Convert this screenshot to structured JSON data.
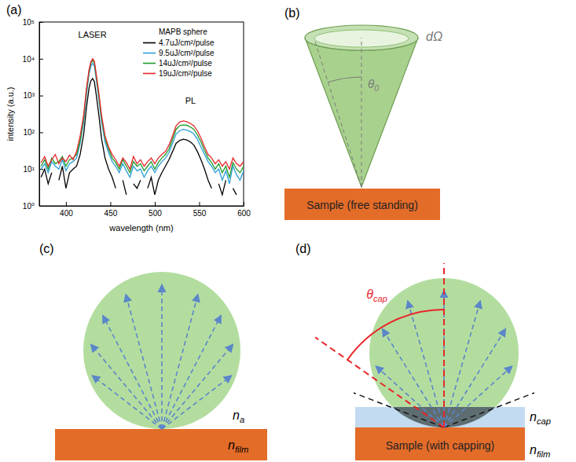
{
  "chart_data": {
    "type": "line",
    "panel_label": "(a)",
    "x_label": "wavelength (nm)",
    "y_label": "intensity (a.u.)",
    "legend_title": "MAPB sphere",
    "legend": "upper right",
    "log": "y",
    "annotations": [
      "LASER",
      "PL"
    ],
    "xlim": [
      370,
      600
    ],
    "xticks": [
      400,
      450,
      500,
      550,
      600
    ],
    "ylim": [
      1,
      100000
    ],
    "yticks": [
      {
        "value": 1,
        "label": "10⁰"
      },
      {
        "value": 10,
        "label": "10¹"
      },
      {
        "value": 100,
        "label": "10²"
      },
      {
        "value": 1000,
        "label": "10³"
      },
      {
        "value": 10000,
        "label": "10⁴"
      },
      {
        "value": 100000,
        "label": "10⁵"
      }
    ],
    "x": [
      372,
      376,
      380,
      384,
      388,
      392,
      396,
      400,
      404,
      408,
      412,
      416,
      420,
      423,
      426,
      428,
      430,
      432,
      434,
      437,
      440,
      444,
      448,
      452,
      456,
      460,
      464,
      468,
      472,
      476,
      480,
      484,
      488,
      492,
      496,
      500,
      504,
      508,
      512,
      516,
      520,
      524,
      528,
      532,
      536,
      540,
      544,
      548,
      552,
      556,
      560,
      564,
      568,
      572,
      576,
      580,
      584,
      588,
      592,
      596,
      600
    ],
    "series": [
      {
        "name": "4.7uJ/cm²/pulse",
        "color": "#000000",
        "values": [
          6,
          10,
          4,
          8,
          null,
          5,
          12,
          3,
          8,
          10,
          12,
          25,
          90,
          450,
          1600,
          2500,
          2900,
          2400,
          1100,
          300,
          70,
          20,
          10,
          6,
          3,
          null,
          5,
          2,
          null,
          4,
          3,
          5,
          null,
          3,
          6,
          2,
          5,
          8,
          12,
          18,
          30,
          50,
          60,
          65,
          62,
          55,
          45,
          30,
          18,
          10,
          5,
          3,
          null,
          4,
          2,
          5,
          null,
          3,
          2,
          null,
          4
        ]
      },
      {
        "name": "9.5uJ/cm²/pulse",
        "color": "#2a9fd8",
        "values": [
          10,
          14,
          8,
          16,
          12,
          10,
          18,
          9,
          14,
          16,
          20,
          50,
          200,
          1000,
          3800,
          6200,
          7500,
          6300,
          2900,
          800,
          200,
          55,
          28,
          16,
          12,
          8,
          14,
          9,
          6,
          12,
          9,
          10,
          6,
          9,
          12,
          8,
          12,
          16,
          20,
          28,
          50,
          90,
          110,
          120,
          115,
          105,
          90,
          65,
          40,
          25,
          16,
          12,
          8,
          10,
          5,
          9,
          4,
          12,
          7,
          5,
          9
        ]
      },
      {
        "name": "14uJ/cm²/pulse",
        "color": "#1e9a2a",
        "values": [
          12,
          18,
          10,
          20,
          14,
          16,
          22,
          12,
          18,
          20,
          25,
          60,
          250,
          1300,
          4500,
          7500,
          9000,
          7600,
          3500,
          1000,
          250,
          70,
          35,
          20,
          15,
          10,
          18,
          12,
          8,
          16,
          12,
          14,
          9,
          12,
          16,
          10,
          15,
          20,
          25,
          35,
          65,
          120,
          150,
          160,
          155,
          140,
          120,
          85,
          55,
          32,
          20,
          15,
          10,
          14,
          8,
          12,
          6,
          15,
          10,
          8,
          12
        ]
      },
      {
        "name": "19uJ/cm²/pulse",
        "color": "#e8262a",
        "values": [
          15,
          22,
          12,
          18,
          25,
          14,
          20,
          16,
          24,
          18,
          30,
          80,
          300,
          1500,
          5000,
          8200,
          10000,
          8600,
          4000,
          1200,
          300,
          80,
          40,
          25,
          18,
          12,
          20,
          15,
          10,
          22,
          14,
          18,
          12,
          16,
          20,
          14,
          20,
          25,
          30,
          45,
          80,
          150,
          190,
          205,
          195,
          175,
          150,
          110,
          70,
          40,
          25,
          20,
          14,
          18,
          12,
          16,
          10,
          20,
          14,
          12,
          16
        ]
      }
    ]
  },
  "diagram": {
    "panels": [
      {
        "label": "(b)",
        "solid_angle": "dΩ",
        "angle": {
          "base": "θ",
          "sub": "0"
        },
        "sample": "Sample (free standing)"
      },
      {
        "label": "(c)",
        "ambient_index": {
          "base": "n",
          "sub": "a"
        },
        "film_index": {
          "base": "n",
          "sub": "film"
        }
      },
      {
        "label": "(d)",
        "cap_angle": {
          "base": "θ",
          "sub": "cap"
        },
        "cap_index": {
          "base": "n",
          "sub": "cap"
        },
        "film_index": {
          "base": "n",
          "sub": "film"
        },
        "sample": "Sample (with capping)"
      }
    ]
  }
}
